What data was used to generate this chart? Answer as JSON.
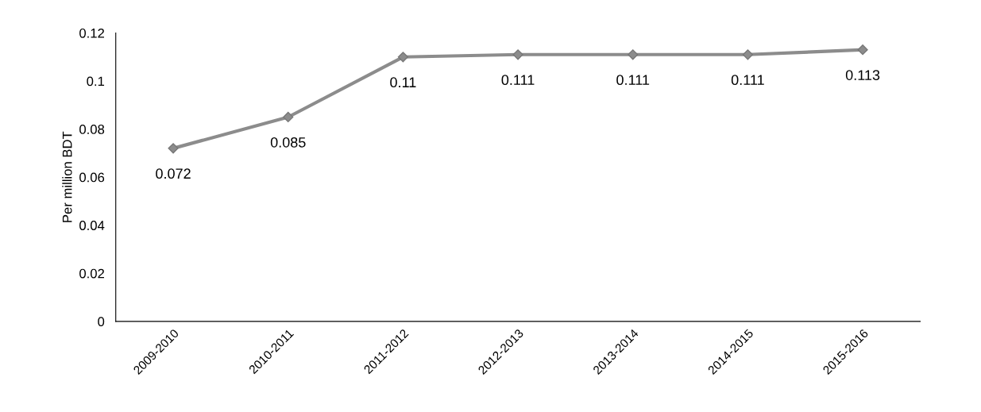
{
  "chart_data": {
    "type": "line",
    "ylabel": "Per million BDT",
    "categories": [
      "2009-2010",
      "2010-2011",
      "2011-2012",
      "2012-2013",
      "2013-2014",
      "2014-2015",
      "2015-2016"
    ],
    "values": [
      0.072,
      0.085,
      0.11,
      0.111,
      0.111,
      0.111,
      0.113
    ],
    "color": "#8c8c8c",
    "marker": "diamond",
    "line_style": "solid",
    "data_labels": true,
    "grid": false,
    "ylim": [
      0,
      0.12
    ],
    "yticks": [
      0,
      {
        "value": 0.02,
        "label": "0.02"
      },
      {
        "value": 0.04,
        "label": "0.04"
      },
      {
        "value": 0.06,
        "label": "0.06"
      },
      {
        "value": 0.08,
        "label": "0.08"
      },
      {
        "value": 0.1,
        "label": "0.1"
      },
      {
        "value": 0.12,
        "label": "0.12"
      }
    ]
  }
}
